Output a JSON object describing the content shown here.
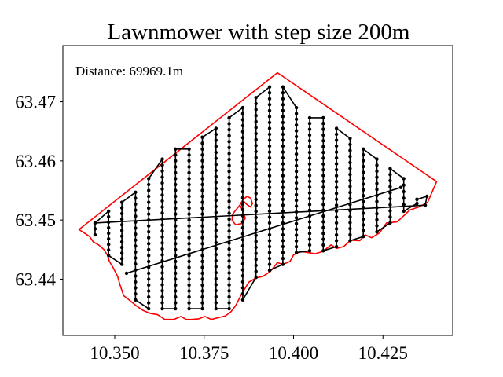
{
  "chart_data": {
    "type": "line",
    "title": "Lawnmower with step size 200m",
    "xlabel": "",
    "ylabel": "",
    "xlim": [
      10.3355,
      10.4445
    ],
    "ylim": [
      63.4305,
      63.4795
    ],
    "xticks": [
      {
        "value": 10.35,
        "label": "10.350"
      },
      {
        "value": 10.375,
        "label": "10.375"
      },
      {
        "value": 10.4,
        "label": "10.400"
      },
      {
        "value": 10.425,
        "label": "10.425"
      }
    ],
    "yticks": [
      {
        "value": 63.44,
        "label": "63.44"
      },
      {
        "value": 63.45,
        "label": "63.45"
      },
      {
        "value": 63.46,
        "label": "63.46"
      },
      {
        "value": 63.47,
        "label": "63.47"
      }
    ],
    "grid": false,
    "annotation": "Distance: 69969.1m",
    "colors": {
      "boundary": "#ff0000",
      "path": "#000000",
      "waypoint": "#000000"
    },
    "boundary": [
      [
        10.34,
        63.4484
      ],
      [
        10.3955,
        63.4749
      ],
      [
        10.44,
        63.4565
      ],
      [
        10.4375,
        63.453
      ],
      [
        10.435,
        63.4522
      ],
      [
        10.4325,
        63.4517
      ],
      [
        10.429,
        63.4497
      ],
      [
        10.426,
        63.4495
      ],
      [
        10.424,
        63.4478
      ],
      [
        10.4218,
        63.447
      ],
      [
        10.42,
        63.4475
      ],
      [
        10.4185,
        63.4465
      ],
      [
        10.416,
        63.4466
      ],
      [
        10.414,
        63.4455
      ],
      [
        10.412,
        63.4452
      ],
      [
        10.4105,
        63.4458
      ],
      [
        10.4082,
        63.4447
      ],
      [
        10.406,
        63.4443
      ],
      [
        10.404,
        63.4445
      ],
      [
        10.402,
        63.4447
      ],
      [
        10.4,
        63.4441
      ],
      [
        10.399,
        63.443
      ],
      [
        10.397,
        63.4425
      ],
      [
        10.3955,
        63.4428
      ],
      [
        10.3935,
        63.4413
      ],
      [
        10.3915,
        63.4405
      ],
      [
        10.3895,
        63.4402
      ],
      [
        10.3875,
        63.4395
      ],
      [
        10.3855,
        63.4375
      ],
      [
        10.3838,
        63.4355
      ],
      [
        10.3825,
        63.4345
      ],
      [
        10.381,
        63.4338
      ],
      [
        10.379,
        63.4335
      ],
      [
        10.377,
        63.4332
      ],
      [
        10.3752,
        63.4337
      ],
      [
        10.3735,
        63.4333
      ],
      [
        10.3715,
        63.4332
      ],
      [
        10.37,
        63.4332
      ],
      [
        10.3685,
        63.4337
      ],
      [
        10.3665,
        63.4332
      ],
      [
        10.364,
        63.4332
      ],
      [
        10.362,
        63.434
      ],
      [
        10.36,
        63.4342
      ],
      [
        10.358,
        63.4347
      ],
      [
        10.356,
        63.4355
      ],
      [
        10.354,
        63.4365
      ],
      [
        10.3525,
        63.4372
      ],
      [
        10.3515,
        63.439
      ],
      [
        10.3508,
        63.4405
      ],
      [
        10.3495,
        63.442
      ],
      [
        10.3485,
        63.443
      ],
      [
        10.348,
        63.444
      ],
      [
        10.347,
        63.445
      ],
      [
        10.3455,
        63.4458
      ],
      [
        10.344,
        63.4463
      ],
      [
        10.343,
        63.4472
      ],
      [
        10.34,
        63.4484
      ]
    ],
    "island": [
      [
        10.386,
        63.4532
      ],
      [
        10.3853,
        63.4522
      ],
      [
        10.386,
        63.4512
      ],
      [
        10.3865,
        63.4503
      ],
      [
        10.3855,
        63.4494
      ],
      [
        10.3838,
        63.4492
      ],
      [
        10.3828,
        63.45
      ],
      [
        10.383,
        63.451
      ],
      [
        10.384,
        63.4518
      ],
      [
        10.385,
        63.4525
      ],
      [
        10.3858,
        63.4534
      ],
      [
        10.387,
        63.454
      ],
      [
        10.388,
        63.4537
      ],
      [
        10.3885,
        63.4528
      ],
      [
        10.388,
        63.4522
      ],
      [
        10.387,
        63.4526
      ],
      [
        10.386,
        63.4532
      ]
    ],
    "columns": [
      {
        "x": 10.3445,
        "y_bottom": 63.4475,
        "y_top": 63.4495
      },
      {
        "x": 10.3483,
        "y_bottom": 63.444,
        "y_top": 63.4515
      },
      {
        "x": 10.352,
        "y_bottom": 63.4425,
        "y_top": 63.453
      },
      {
        "x": 10.3558,
        "y_bottom": 63.4365,
        "y_top": 63.4547
      },
      {
        "x": 10.3595,
        "y_bottom": 63.435,
        "y_top": 63.457
      },
      {
        "x": 10.3633,
        "y_bottom": 63.435,
        "y_top": 63.4603
      },
      {
        "x": 10.367,
        "y_bottom": 63.435,
        "y_top": 63.462
      },
      {
        "x": 10.3708,
        "y_bottom": 63.435,
        "y_top": 63.462
      },
      {
        "x": 10.3745,
        "y_bottom": 63.435,
        "y_top": 63.464
      },
      {
        "x": 10.3783,
        "y_bottom": 63.435,
        "y_top": 63.4655
      },
      {
        "x": 10.382,
        "y_bottom": 63.435,
        "y_top": 63.4673
      },
      {
        "x": 10.3858,
        "y_bottom": 63.4365,
        "y_top": 63.469
      },
      {
        "x": 10.3895,
        "y_bottom": 63.4403,
        "y_top": 63.4707
      },
      {
        "x": 10.3933,
        "y_bottom": 63.4415,
        "y_top": 63.4725
      },
      {
        "x": 10.397,
        "y_bottom": 63.4425,
        "y_top": 63.4725
      },
      {
        "x": 10.4008,
        "y_bottom": 63.4445,
        "y_top": 63.469
      },
      {
        "x": 10.4045,
        "y_bottom": 63.4448,
        "y_top": 63.4673
      },
      {
        "x": 10.4083,
        "y_bottom": 63.4448,
        "y_top": 63.4673
      },
      {
        "x": 10.412,
        "y_bottom": 63.4455,
        "y_top": 63.4655
      },
      {
        "x": 10.4158,
        "y_bottom": 63.4465,
        "y_top": 63.4638
      },
      {
        "x": 10.4195,
        "y_bottom": 63.4472,
        "y_top": 63.462
      },
      {
        "x": 10.4233,
        "y_bottom": 63.448,
        "y_top": 63.4603
      },
      {
        "x": 10.427,
        "y_bottom": 63.4495,
        "y_top": 63.4587
      },
      {
        "x": 10.4308,
        "y_bottom": 63.4515,
        "y_top": 63.457
      },
      {
        "x": 10.4345,
        "y_bottom": 63.4528,
        "y_top": 63.4535
      }
    ],
    "transits": [
      [
        [
          10.4345,
          63.4535
        ],
        [
          10.4373,
          63.454
        ],
        [
          10.4368,
          63.4525
        ]
      ],
      [
        [
          10.4368,
          63.4525
        ],
        [
          10.3445,
          63.4495
        ]
      ],
      [
        [
          10.43,
          63.4555
        ],
        [
          10.3533,
          63.441
        ]
      ]
    ]
  }
}
